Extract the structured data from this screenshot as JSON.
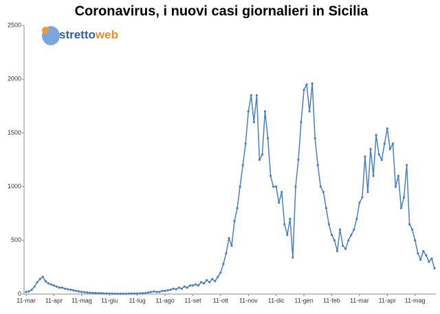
{
  "logo": {
    "part1": "stretto",
    "part2": "web"
  },
  "chart_data": {
    "type": "line",
    "title": "Coronavirus, i nuovi casi giornalieri in Sicilia",
    "categories": [
      "11-mar",
      null,
      null,
      null,
      null,
      null,
      null,
      null,
      null,
      null,
      "11-apr",
      null,
      null,
      null,
      null,
      null,
      null,
      null,
      null,
      null,
      "11-mag",
      null,
      null,
      null,
      null,
      null,
      null,
      null,
      null,
      null,
      "11-giu",
      null,
      null,
      null,
      null,
      null,
      null,
      null,
      null,
      null,
      "11-lug",
      null,
      null,
      null,
      null,
      null,
      null,
      null,
      null,
      null,
      "11-ago",
      null,
      null,
      null,
      null,
      null,
      null,
      null,
      null,
      null,
      "11-set",
      null,
      null,
      null,
      null,
      null,
      null,
      null,
      null,
      null,
      "11-ott",
      null,
      null,
      null,
      null,
      null,
      null,
      null,
      null,
      null,
      "11-nov",
      null,
      null,
      null,
      null,
      null,
      null,
      null,
      null,
      null,
      "11-dic",
      null,
      null,
      null,
      null,
      null,
      null,
      null,
      null,
      null,
      "11-gen",
      null,
      null,
      null,
      null,
      null,
      null,
      null,
      null,
      null,
      "11-feb",
      null,
      null,
      null,
      null,
      null,
      null,
      null,
      null,
      null,
      "11-mar",
      null,
      null,
      null,
      null,
      null,
      null,
      null,
      null,
      null,
      "11-apr",
      null,
      null,
      null,
      null,
      null,
      null,
      null,
      null,
      null,
      "11-mag",
      null,
      null,
      null,
      null,
      null,
      null,
      null
    ],
    "series": [
      {
        "color": "#4a7ebb",
        "values": [
          20,
          25,
          40,
          70,
          110,
          140,
          160,
          120,
          100,
          90,
          80,
          70,
          60,
          60,
          50,
          45,
          40,
          35,
          30,
          25,
          20,
          18,
          15,
          12,
          10,
          10,
          8,
          8,
          6,
          5,
          5,
          4,
          3,
          3,
          3,
          3,
          3,
          4,
          5,
          5,
          5,
          6,
          8,
          10,
          15,
          20,
          25,
          20,
          20,
          30,
          30,
          35,
          40,
          50,
          45,
          60,
          50,
          70,
          60,
          80,
          80,
          90,
          80,
          110,
          100,
          130,
          110,
          140,
          120,
          160,
          200,
          280,
          380,
          520,
          450,
          680,
          800,
          1000,
          1200,
          1400,
          1700,
          1850,
          1600,
          1850,
          1250,
          1300,
          1700,
          1450,
          1100,
          1000,
          1000,
          850,
          950,
          650,
          550,
          700,
          340,
          1000,
          1250,
          1600,
          1900,
          1950,
          1700,
          1960,
          1450,
          1200,
          1000,
          950,
          800,
          650,
          550,
          500,
          400,
          600,
          450,
          420,
          500,
          550,
          600,
          700,
          850,
          900,
          1280,
          950,
          1350,
          1100,
          1480,
          1300,
          1250,
          1400,
          1540,
          1350,
          1400,
          1000,
          1100,
          800,
          900,
          1200,
          650,
          600,
          500,
          380,
          320,
          400,
          360,
          300,
          330,
          240
        ]
      }
    ],
    "ylim": [
      0,
      2500
    ],
    "yticks": [
      0,
      500,
      1000,
      1500,
      2000,
      2500
    ],
    "grid": false
  }
}
